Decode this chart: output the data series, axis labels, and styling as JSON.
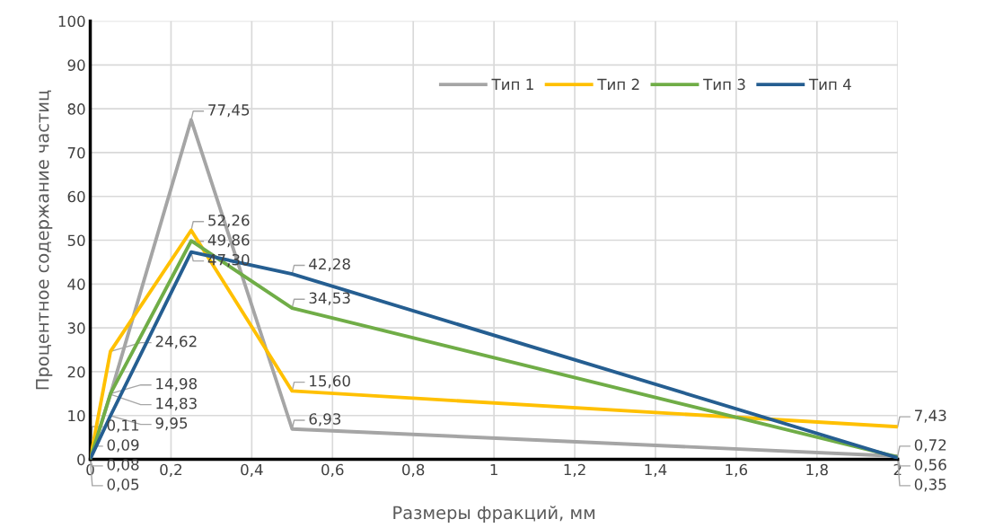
{
  "chart_data": {
    "type": "line",
    "xlabel": "Размеры фракций, мм",
    "ylabel": "Процентное содержание частиц",
    "x": [
      0,
      0.05,
      0.25,
      0.5,
      2
    ],
    "series": [
      {
        "name": "Тип 1",
        "color": "#a5a5a5",
        "values": [
          0.05,
          14.83,
          77.45,
          6.93,
          0.72
        ],
        "value_labels": [
          "0,05",
          "14,83",
          "77,45",
          "6,93",
          "0,72"
        ]
      },
      {
        "name": "Тип 2",
        "color": "#ffc000",
        "values": [
          0.09,
          24.62,
          52.26,
          15.6,
          7.43
        ],
        "value_labels": [
          "0,09",
          "24,62",
          "52,26",
          "15,60",
          "7,43"
        ]
      },
      {
        "name": "Тип 3",
        "color": "#70ad47",
        "values": [
          0.08,
          14.98,
          49.86,
          34.53,
          0.56
        ],
        "value_labels": [
          "0,08",
          "14,98",
          "49,86",
          "34,53",
          "0,56"
        ]
      },
      {
        "name": "Тип 4",
        "color": "#255e91",
        "values": [
          0.11,
          9.95,
          47.3,
          42.28,
          0.35
        ],
        "value_labels": [
          "0,11",
          "9,95",
          "47,30",
          "42,28",
          "0,35"
        ]
      }
    ],
    "xlim": [
      0,
      2
    ],
    "xticks": [
      0,
      {
        "value": 0.2,
        "label": "0,2"
      },
      {
        "value": 0.4,
        "label": "0,4"
      },
      {
        "value": 0.6,
        "label": "0,6"
      },
      {
        "value": 0.8,
        "label": "0,8"
      },
      1,
      {
        "value": 1.2,
        "label": "1,2"
      },
      {
        "value": 1.4,
        "label": "1,4"
      },
      {
        "value": 1.6,
        "label": "1,6"
      },
      {
        "value": 1.8,
        "label": "1,8"
      },
      2
    ],
    "ylim": [
      0,
      100
    ],
    "yticks": [
      0,
      10,
      20,
      30,
      40,
      50,
      60,
      70,
      80,
      90,
      100
    ],
    "grid": true,
    "legend": "top right",
    "marker": "none",
    "line_style": "solid"
  }
}
